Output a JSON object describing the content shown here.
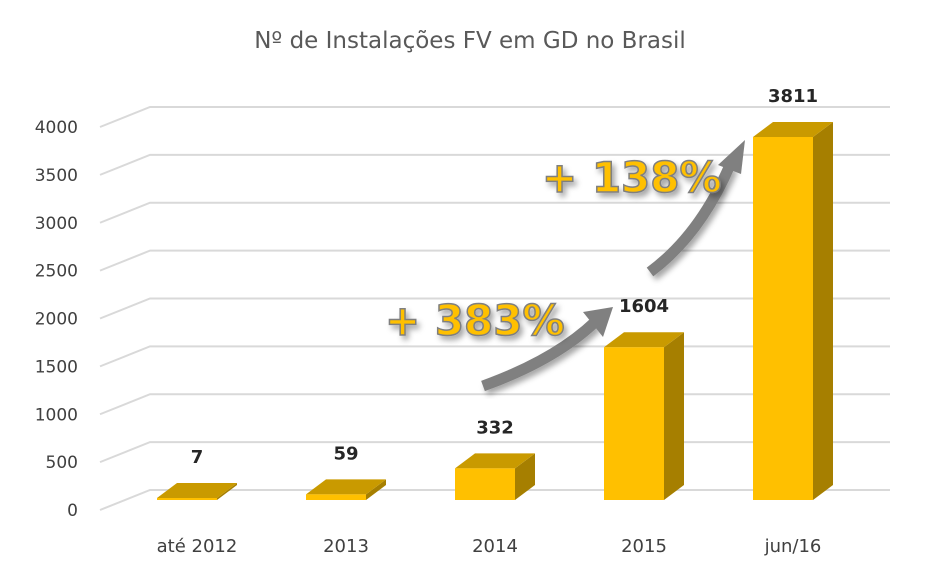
{
  "chart_data": {
    "type": "bar",
    "title": "Nº de Instalações FV em GD no Brasil",
    "categories": [
      "até 2012",
      "2013",
      "2014",
      "2015",
      "jun/16"
    ],
    "values": [
      7,
      59,
      332,
      1604,
      3811
    ],
    "data_labels": [
      "7",
      "59",
      "332",
      "1604",
      "3811"
    ],
    "ylim": [
      0,
      4000
    ],
    "yticks": [
      0,
      500,
      1000,
      1500,
      2000,
      2500,
      3000,
      3500,
      4000
    ],
    "grid": true,
    "style": "3d-column",
    "colors": {
      "front": "#FFC000",
      "side": "#A67F00",
      "top": "#C99A00",
      "arrow": "#808080",
      "annotation": "#FFC000"
    },
    "annotations": [
      {
        "text": "+ 383%",
        "from": "2014",
        "to": "2015"
      },
      {
        "text": "+ 138%",
        "from": "2015",
        "to": "jun/16"
      }
    ]
  }
}
